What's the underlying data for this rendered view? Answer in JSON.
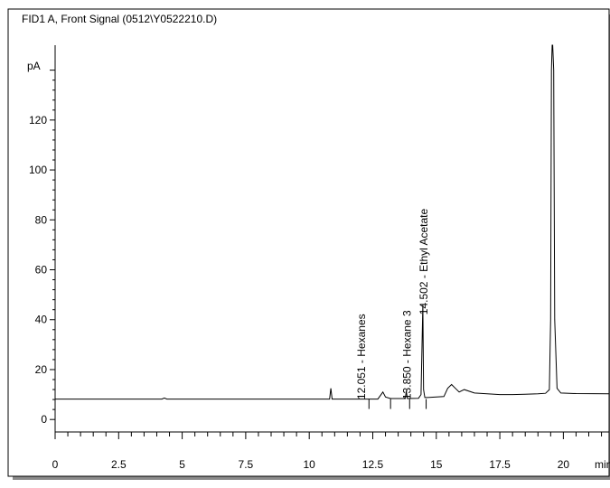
{
  "chart_data": {
    "type": "line",
    "title": "FID1 A, Front Signal (0512\\Y0522210.D)",
    "ylabel": "pA",
    "xlabel": "min",
    "xlim": [
      0,
      21.8
    ],
    "ylim": [
      -5,
      150
    ],
    "x_ticks": [
      0,
      2.5,
      5,
      7.5,
      10,
      12.5,
      15,
      17.5,
      20
    ],
    "x_tick_labels": [
      "0",
      "2.5",
      "5",
      "7.5",
      "10",
      "12.5",
      "15",
      "17.5",
      "20"
    ],
    "y_ticks": [
      0,
      20,
      40,
      60,
      80,
      100,
      120
    ],
    "y_tick_labels": [
      "0",
      "20",
      "40",
      "60",
      "80",
      "100",
      "120"
    ],
    "baseline": 8.2,
    "series": [
      {
        "x": [
          0,
          4.2,
          4.3,
          4.4,
          10.8,
          10.85,
          10.9,
          10.95,
          11.0,
          12.7,
          12.9,
          13.0,
          13.2,
          13.78,
          13.82,
          13.86,
          14.3,
          14.4,
          14.47,
          14.5,
          14.55,
          14.65,
          15.3,
          15.45,
          15.6,
          15.75,
          15.9,
          16.1,
          16.5,
          17.0,
          17.5,
          18.0,
          18.5,
          19.0,
          19.3,
          19.45,
          19.5,
          19.53,
          19.56,
          19.58,
          19.62,
          19.66,
          19.75,
          19.9,
          20.5,
          21.8
        ],
        "y": [
          8.2,
          8.2,
          8.6,
          8.2,
          8.2,
          12.5,
          8.2,
          8.2,
          8.2,
          8.2,
          11.0,
          9.0,
          8.4,
          8.4,
          11.5,
          8.4,
          8.5,
          10.0,
          46.0,
          12.0,
          8.8,
          8.8,
          9.2,
          12.5,
          14.0,
          12.5,
          11.0,
          12.0,
          10.6,
          10.3,
          10.0,
          10.0,
          10.1,
          10.3,
          10.5,
          12.0,
          40.0,
          140.0,
          150.0,
          150.0,
          140.0,
          40.0,
          12.5,
          10.6,
          10.4,
          10.3
        ]
      }
    ],
    "annotations": [
      {
        "x": 12.051,
        "text": "12.051 - Hexanes",
        "y_bottom": 8
      },
      {
        "x": 13.85,
        "text": "13.850 - Hexane 3",
        "y_bottom": 8
      },
      {
        "x": 14.502,
        "text": "14.502 - Ethyl Acetate",
        "y_bottom": 42
      }
    ],
    "integration_markers": [
      12.35,
      13.2,
      13.95,
      14.6
    ],
    "grid": false,
    "legend": "none"
  }
}
